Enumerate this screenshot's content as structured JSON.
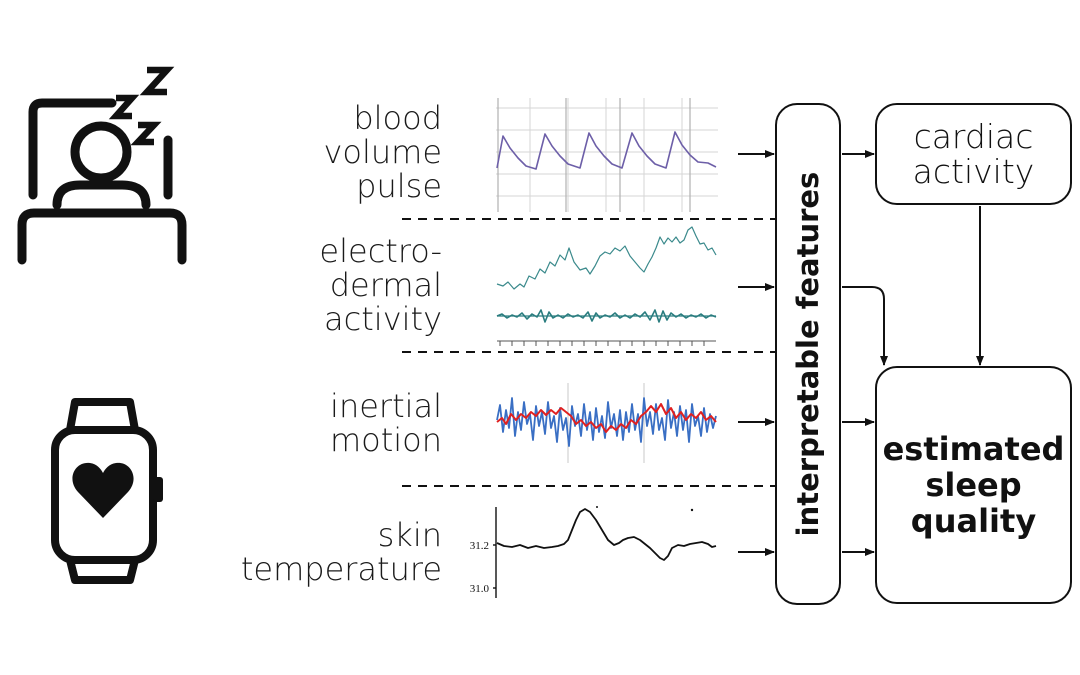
{
  "signals": [
    {
      "id": "bvp",
      "lines": [
        "blood",
        "volume",
        "pulse"
      ]
    },
    {
      "id": "eda",
      "lines": [
        "electro-",
        "dermal",
        "activity"
      ]
    },
    {
      "id": "imu",
      "lines": [
        "inertial",
        "motion"
      ]
    },
    {
      "id": "temp",
      "lines": [
        "skin",
        "temperature"
      ]
    }
  ],
  "temperature_ticks": [
    "31.2",
    "31.0"
  ],
  "features_label": "interpretable features",
  "cardiac_lines": [
    "cardiac",
    "activity"
  ],
  "quality_lines": [
    "estimated",
    "sleep",
    "quality"
  ],
  "icons": [
    "sleeping-person-icon",
    "smartwatch-heart-icon"
  ],
  "colors": {
    "bvp_trace": "#6d5fa8",
    "eda_trace": "#3b8a8c",
    "motion_blue": "#3a6fc4",
    "motion_red": "#e02020",
    "temp_trace": "#111111",
    "outline": "#111111"
  }
}
